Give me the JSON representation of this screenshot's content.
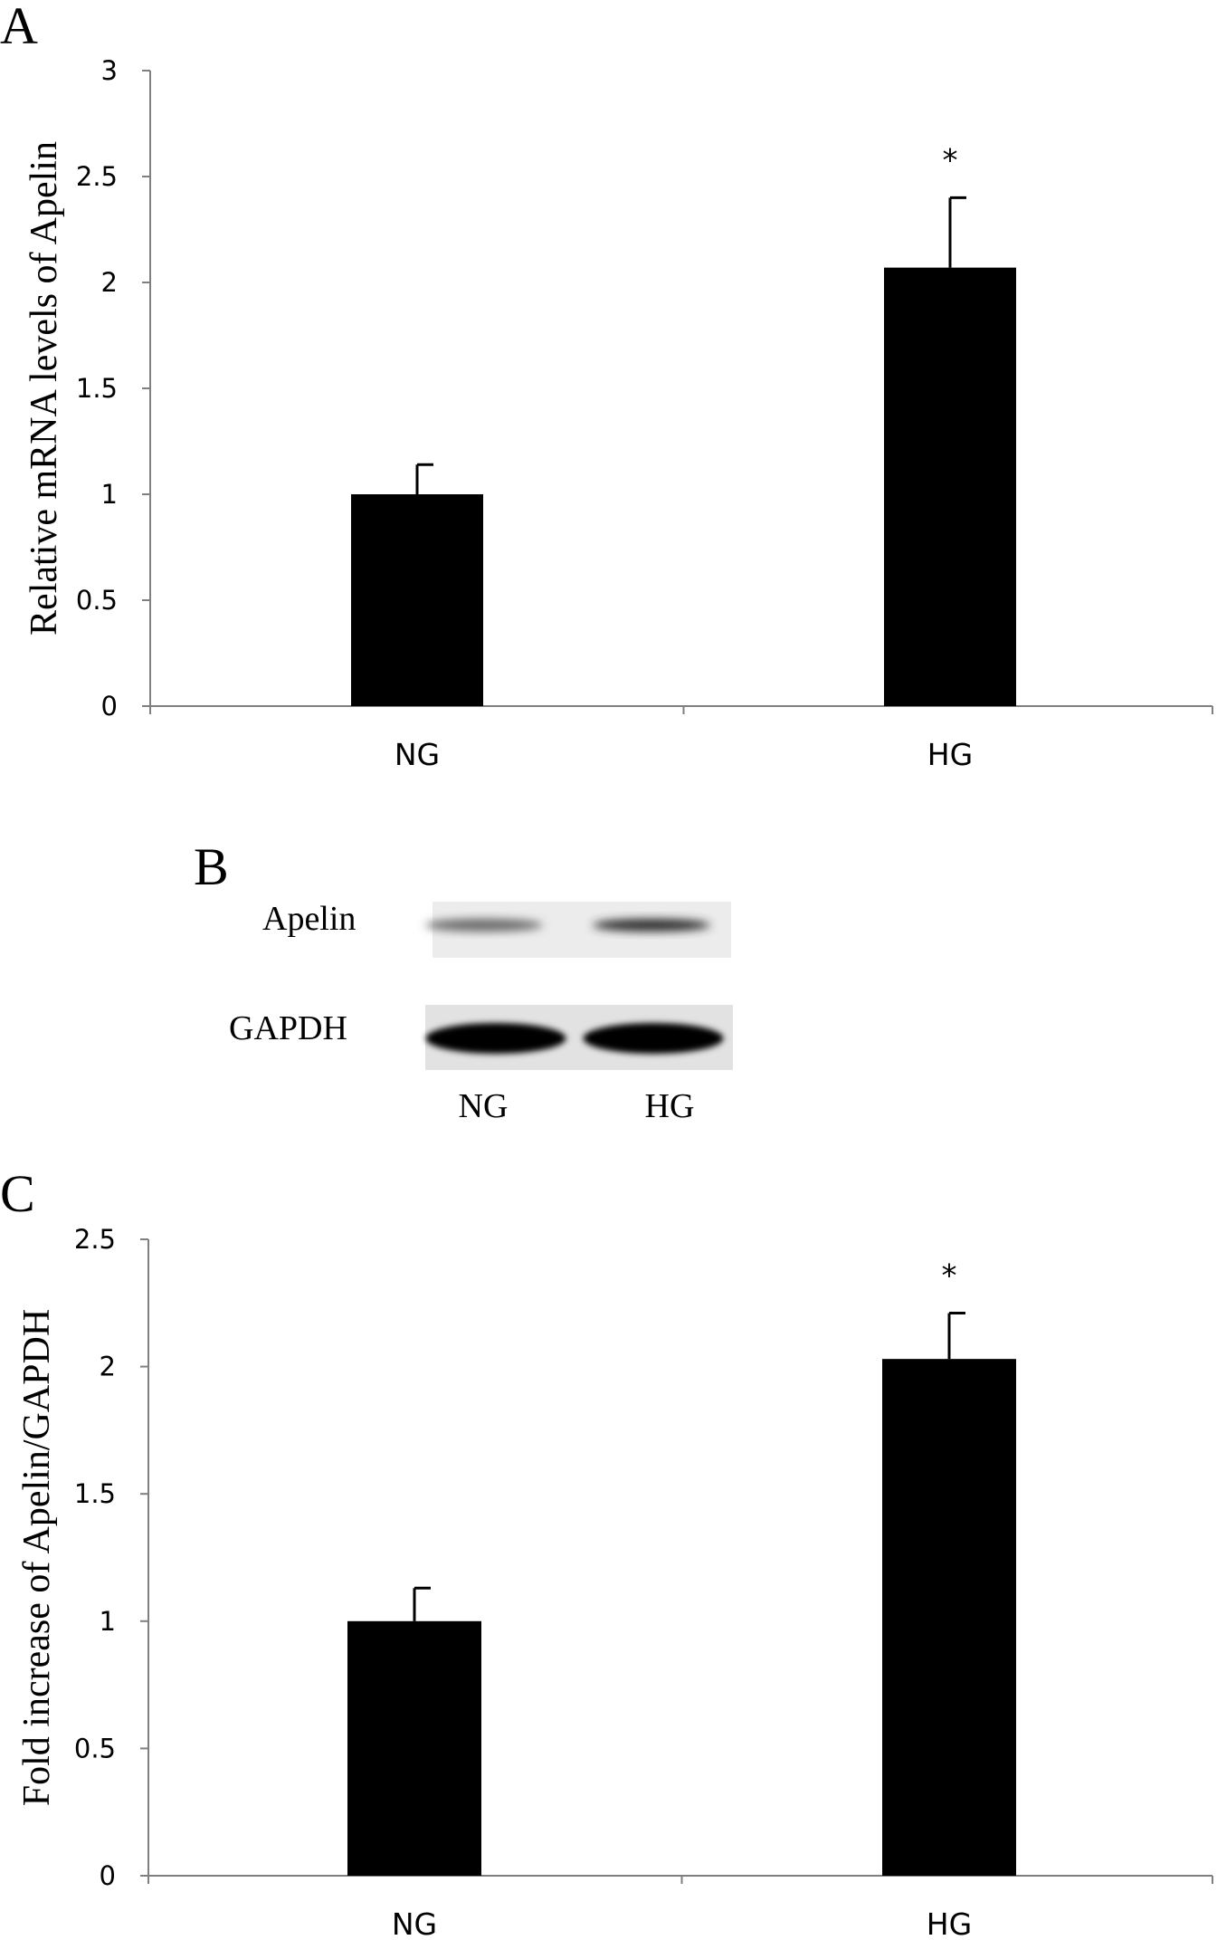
{
  "panels": {
    "a_letter": "A",
    "b_letter": "B",
    "c_letter": "C"
  },
  "blot": {
    "rows": [
      "Apelin",
      "GAPDH"
    ],
    "lanes": [
      "NG",
      "HG"
    ],
    "band_intensity": {
      "Apelin": [
        0.55,
        0.8
      ],
      "GAPDH": [
        1.0,
        1.0
      ]
    }
  },
  "colors": {
    "bar": "#000000",
    "axis": "#7f7f7f"
  },
  "chart_data": [
    {
      "type": "bar",
      "panel": "A",
      "title": "",
      "xlabel": "",
      "ylabel": "Relative mRNA levels of Apelin",
      "categories": [
        "NG",
        "HG"
      ],
      "values": [
        1.0,
        2.07
      ],
      "errors": [
        0.14,
        0.33
      ],
      "annotations": [
        "",
        "*"
      ],
      "ylim": [
        0,
        3
      ],
      "yticks": [
        0,
        0.5,
        1,
        1.5,
        2,
        2.5,
        3
      ],
      "ytick_labels": [
        "0",
        "0.5",
        "1",
        "1.5",
        "2",
        "2.5",
        "3"
      ],
      "grid": false,
      "legend": "none"
    },
    {
      "type": "bar",
      "panel": "C",
      "title": "",
      "xlabel": "",
      "ylabel": "Fold increase of Apelin/GAPDH",
      "categories": [
        "NG",
        "HG"
      ],
      "values": [
        1.0,
        2.03
      ],
      "errors": [
        0.13,
        0.18
      ],
      "annotations": [
        "",
        "*"
      ],
      "ylim": [
        0,
        2.5
      ],
      "yticks": [
        0,
        0.5,
        1,
        1.5,
        2,
        2.5
      ],
      "ytick_labels": [
        "0",
        "0.5",
        "1",
        "1.5",
        "2",
        "2.5"
      ],
      "grid": false,
      "legend": "none"
    }
  ]
}
